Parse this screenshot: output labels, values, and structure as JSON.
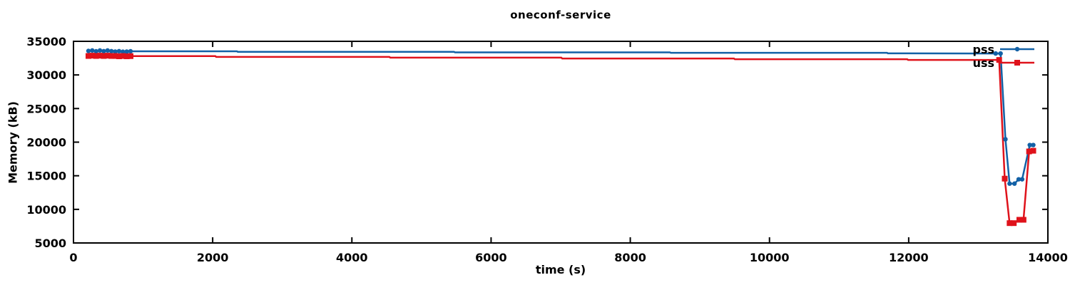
{
  "chart_data": {
    "type": "line",
    "title": "oneconf-service",
    "xlabel": "time (s)",
    "ylabel": "Memory (kB)",
    "xlim": [
      0,
      14000
    ],
    "ylim": [
      5000,
      35000
    ],
    "xticks": [
      0,
      2000,
      4000,
      6000,
      8000,
      10000,
      12000,
      14000
    ],
    "yticks": [
      5000,
      10000,
      15000,
      20000,
      25000,
      30000,
      35000
    ],
    "grid": false,
    "legend_position": "top-right-inside",
    "axis_color": "#000000",
    "series": [
      {
        "name": "pss",
        "color": "#1261a6",
        "marker": "circle",
        "line": [
          [
            215,
            33570
          ],
          [
            270,
            33640
          ],
          [
            325,
            33520
          ],
          [
            380,
            33640
          ],
          [
            435,
            33540
          ],
          [
            490,
            33640
          ],
          [
            545,
            33540
          ],
          [
            600,
            33470
          ],
          [
            655,
            33540
          ],
          [
            710,
            33450
          ],
          [
            765,
            33470
          ],
          [
            820,
            33520
          ],
          [
            2350,
            33520
          ],
          [
            2360,
            33430
          ],
          [
            5470,
            33430
          ],
          [
            5480,
            33360
          ],
          [
            8570,
            33360
          ],
          [
            8580,
            33290
          ],
          [
            11690,
            33290
          ],
          [
            11700,
            33210
          ],
          [
            13250,
            33190
          ],
          [
            13320,
            33190
          ],
          [
            13390,
            20430
          ],
          [
            13450,
            13830
          ],
          [
            13520,
            13830
          ],
          [
            13580,
            14470
          ],
          [
            13630,
            14470
          ],
          [
            13740,
            19570
          ],
          [
            13790,
            19570
          ]
        ],
        "markers": [
          [
            215,
            33570
          ],
          [
            270,
            33640
          ],
          [
            325,
            33520
          ],
          [
            380,
            33640
          ],
          [
            435,
            33540
          ],
          [
            490,
            33640
          ],
          [
            545,
            33540
          ],
          [
            600,
            33470
          ],
          [
            655,
            33540
          ],
          [
            710,
            33450
          ],
          [
            765,
            33470
          ],
          [
            820,
            33520
          ],
          [
            13250,
            33190
          ],
          [
            13320,
            33190
          ],
          [
            13390,
            20430
          ],
          [
            13450,
            13830
          ],
          [
            13520,
            13830
          ],
          [
            13580,
            14470
          ],
          [
            13630,
            14470
          ],
          [
            13740,
            19570
          ],
          [
            13790,
            19570
          ]
        ]
      },
      {
        "name": "uss",
        "color": "#df121b",
        "marker": "square",
        "line": [
          [
            215,
            32820
          ],
          [
            270,
            32870
          ],
          [
            325,
            32820
          ],
          [
            380,
            32870
          ],
          [
            435,
            32820
          ],
          [
            490,
            32870
          ],
          [
            545,
            32820
          ],
          [
            600,
            32820
          ],
          [
            655,
            32770
          ],
          [
            710,
            32820
          ],
          [
            765,
            32770
          ],
          [
            820,
            32800
          ],
          [
            2040,
            32800
          ],
          [
            2050,
            32680
          ],
          [
            4540,
            32680
          ],
          [
            4550,
            32570
          ],
          [
            7010,
            32570
          ],
          [
            7020,
            32450
          ],
          [
            9490,
            32450
          ],
          [
            9500,
            32340
          ],
          [
            11980,
            32340
          ],
          [
            11990,
            32230
          ],
          [
            13300,
            32230
          ],
          [
            13380,
            14570
          ],
          [
            13450,
            7950
          ],
          [
            13510,
            7950
          ],
          [
            13590,
            8450
          ],
          [
            13650,
            8450
          ],
          [
            13730,
            18620
          ],
          [
            13790,
            18720
          ]
        ],
        "markers": [
          [
            215,
            32820
          ],
          [
            270,
            32870
          ],
          [
            325,
            32820
          ],
          [
            380,
            32870
          ],
          [
            435,
            32820
          ],
          [
            490,
            32870
          ],
          [
            545,
            32820
          ],
          [
            600,
            32820
          ],
          [
            655,
            32770
          ],
          [
            710,
            32820
          ],
          [
            765,
            32770
          ],
          [
            820,
            32800
          ],
          [
            13300,
            32230
          ],
          [
            13380,
            14570
          ],
          [
            13450,
            7950
          ],
          [
            13510,
            7950
          ],
          [
            13590,
            8450
          ],
          [
            13650,
            8450
          ],
          [
            13730,
            18620
          ],
          [
            13790,
            18720
          ]
        ]
      }
    ]
  }
}
